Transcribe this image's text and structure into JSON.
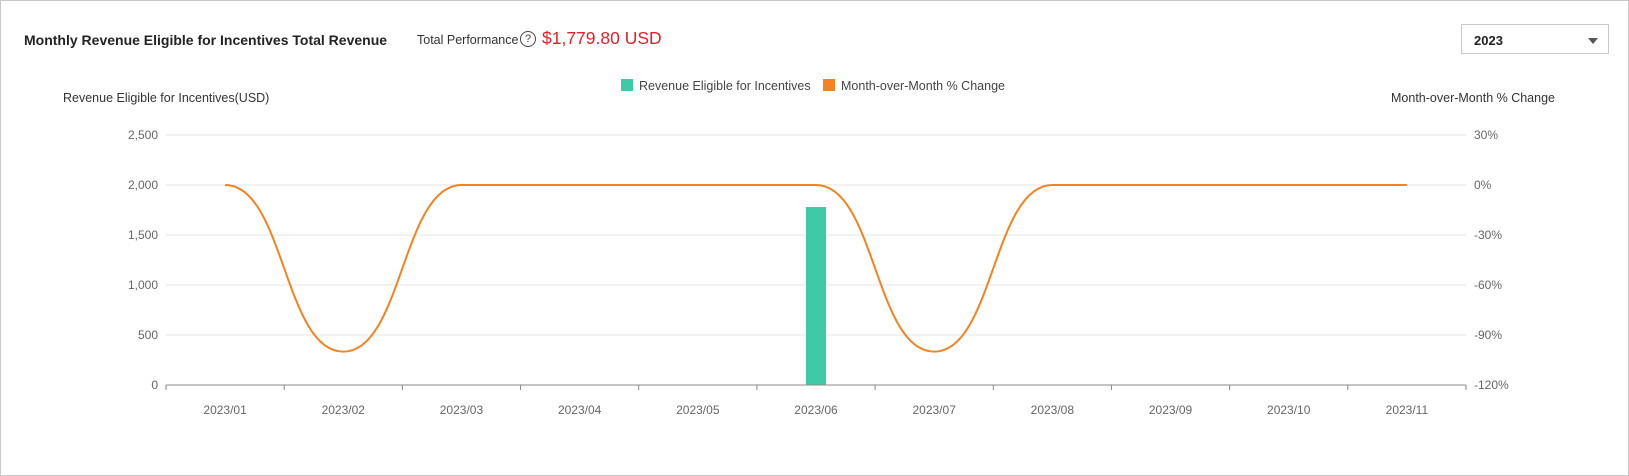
{
  "header": {
    "title": "Monthly Revenue Eligible for Incentives Total Revenue",
    "performance_label": "Total Performance",
    "help_icon": "question-circle-icon",
    "performance_value": "$1,779.80 USD"
  },
  "year_select": {
    "value": "2023"
  },
  "colors": {
    "bar": "#3ec9a7",
    "line": "#f5821f",
    "accent_red": "#e0202b",
    "grid": "#e6e6e6",
    "axis": "#888888",
    "tick_text": "#666666"
  },
  "chart_data": {
    "type": "bar",
    "categories": [
      "2023/01",
      "2023/02",
      "2023/03",
      "2023/04",
      "2023/05",
      "2023/06",
      "2023/07",
      "2023/08",
      "2023/09",
      "2023/10",
      "2023/11"
    ],
    "series": [
      {
        "name": "Revenue Eligible for Incentives",
        "type": "bar",
        "axis": "left",
        "values": [
          0,
          0,
          0,
          0,
          0,
          1779.8,
          0,
          0,
          0,
          0,
          0
        ]
      },
      {
        "name": "Month-over-Month % Change",
        "type": "line",
        "axis": "right",
        "smooth": true,
        "values": [
          0,
          -100,
          0,
          0,
          0,
          0,
          -100,
          0,
          0,
          0,
          0
        ]
      }
    ],
    "ylabel_left": "Revenue Eligible for Incentives(USD)",
    "ylabel_right": "Month-over-Month % Change",
    "ylim_left": [
      0,
      2500
    ],
    "yticks_left": [
      "0",
      "500",
      "1,000",
      "1,500",
      "2,000",
      "2,500"
    ],
    "ylim_right": [
      -120,
      30
    ],
    "yticks_right": [
      "-120%",
      "-90%",
      "-60%",
      "-30%",
      "0%",
      "30%"
    ],
    "legend_position": "top-center",
    "grid": true
  }
}
